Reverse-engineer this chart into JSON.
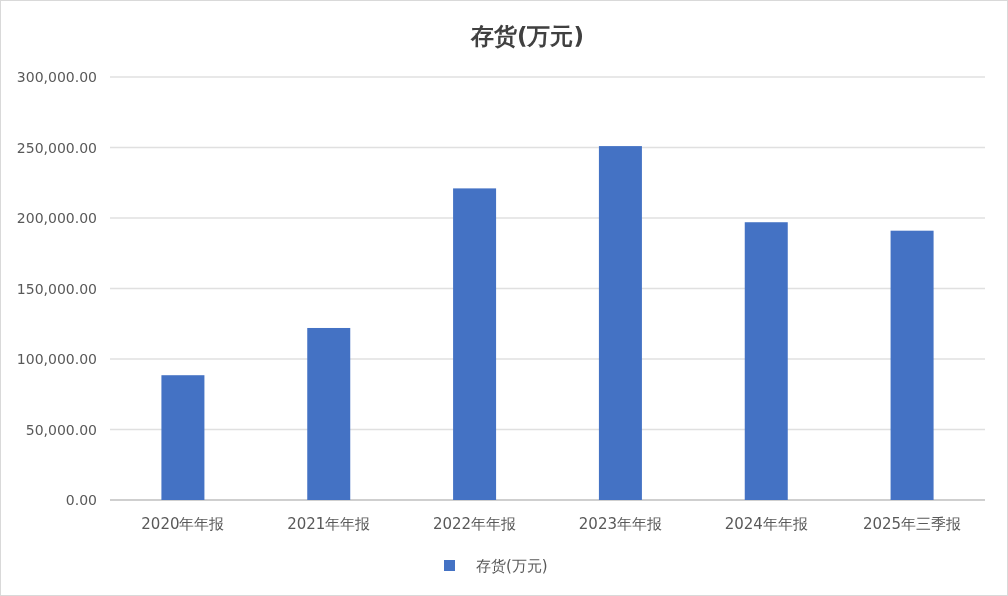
{
  "chart_data": {
    "type": "bar",
    "title": "存货(万元)",
    "categories": [
      "2020年年报",
      "2021年年报",
      "2022年年报",
      "2023年年报",
      "2024年年报",
      "2025年三季报"
    ],
    "series": [
      {
        "name": "存货(万元)",
        "color": "#4472c4",
        "values": [
          88500,
          122000,
          221000,
          251000,
          197000,
          191000
        ]
      }
    ],
    "ylim": [
      0,
      300000
    ],
    "yticks": [
      {
        "value": 0,
        "label": "0.00"
      },
      {
        "value": 50000,
        "label": "50,000.00"
      },
      {
        "value": 100000,
        "label": "100,000.00"
      },
      {
        "value": 150000,
        "label": "150,000.00"
      },
      {
        "value": 200000,
        "label": "200,000.00"
      },
      {
        "value": 250000,
        "label": "250,000.00"
      },
      {
        "value": 300000,
        "label": "300,000.00"
      }
    ],
    "grid": "y",
    "legend": "bottom"
  }
}
